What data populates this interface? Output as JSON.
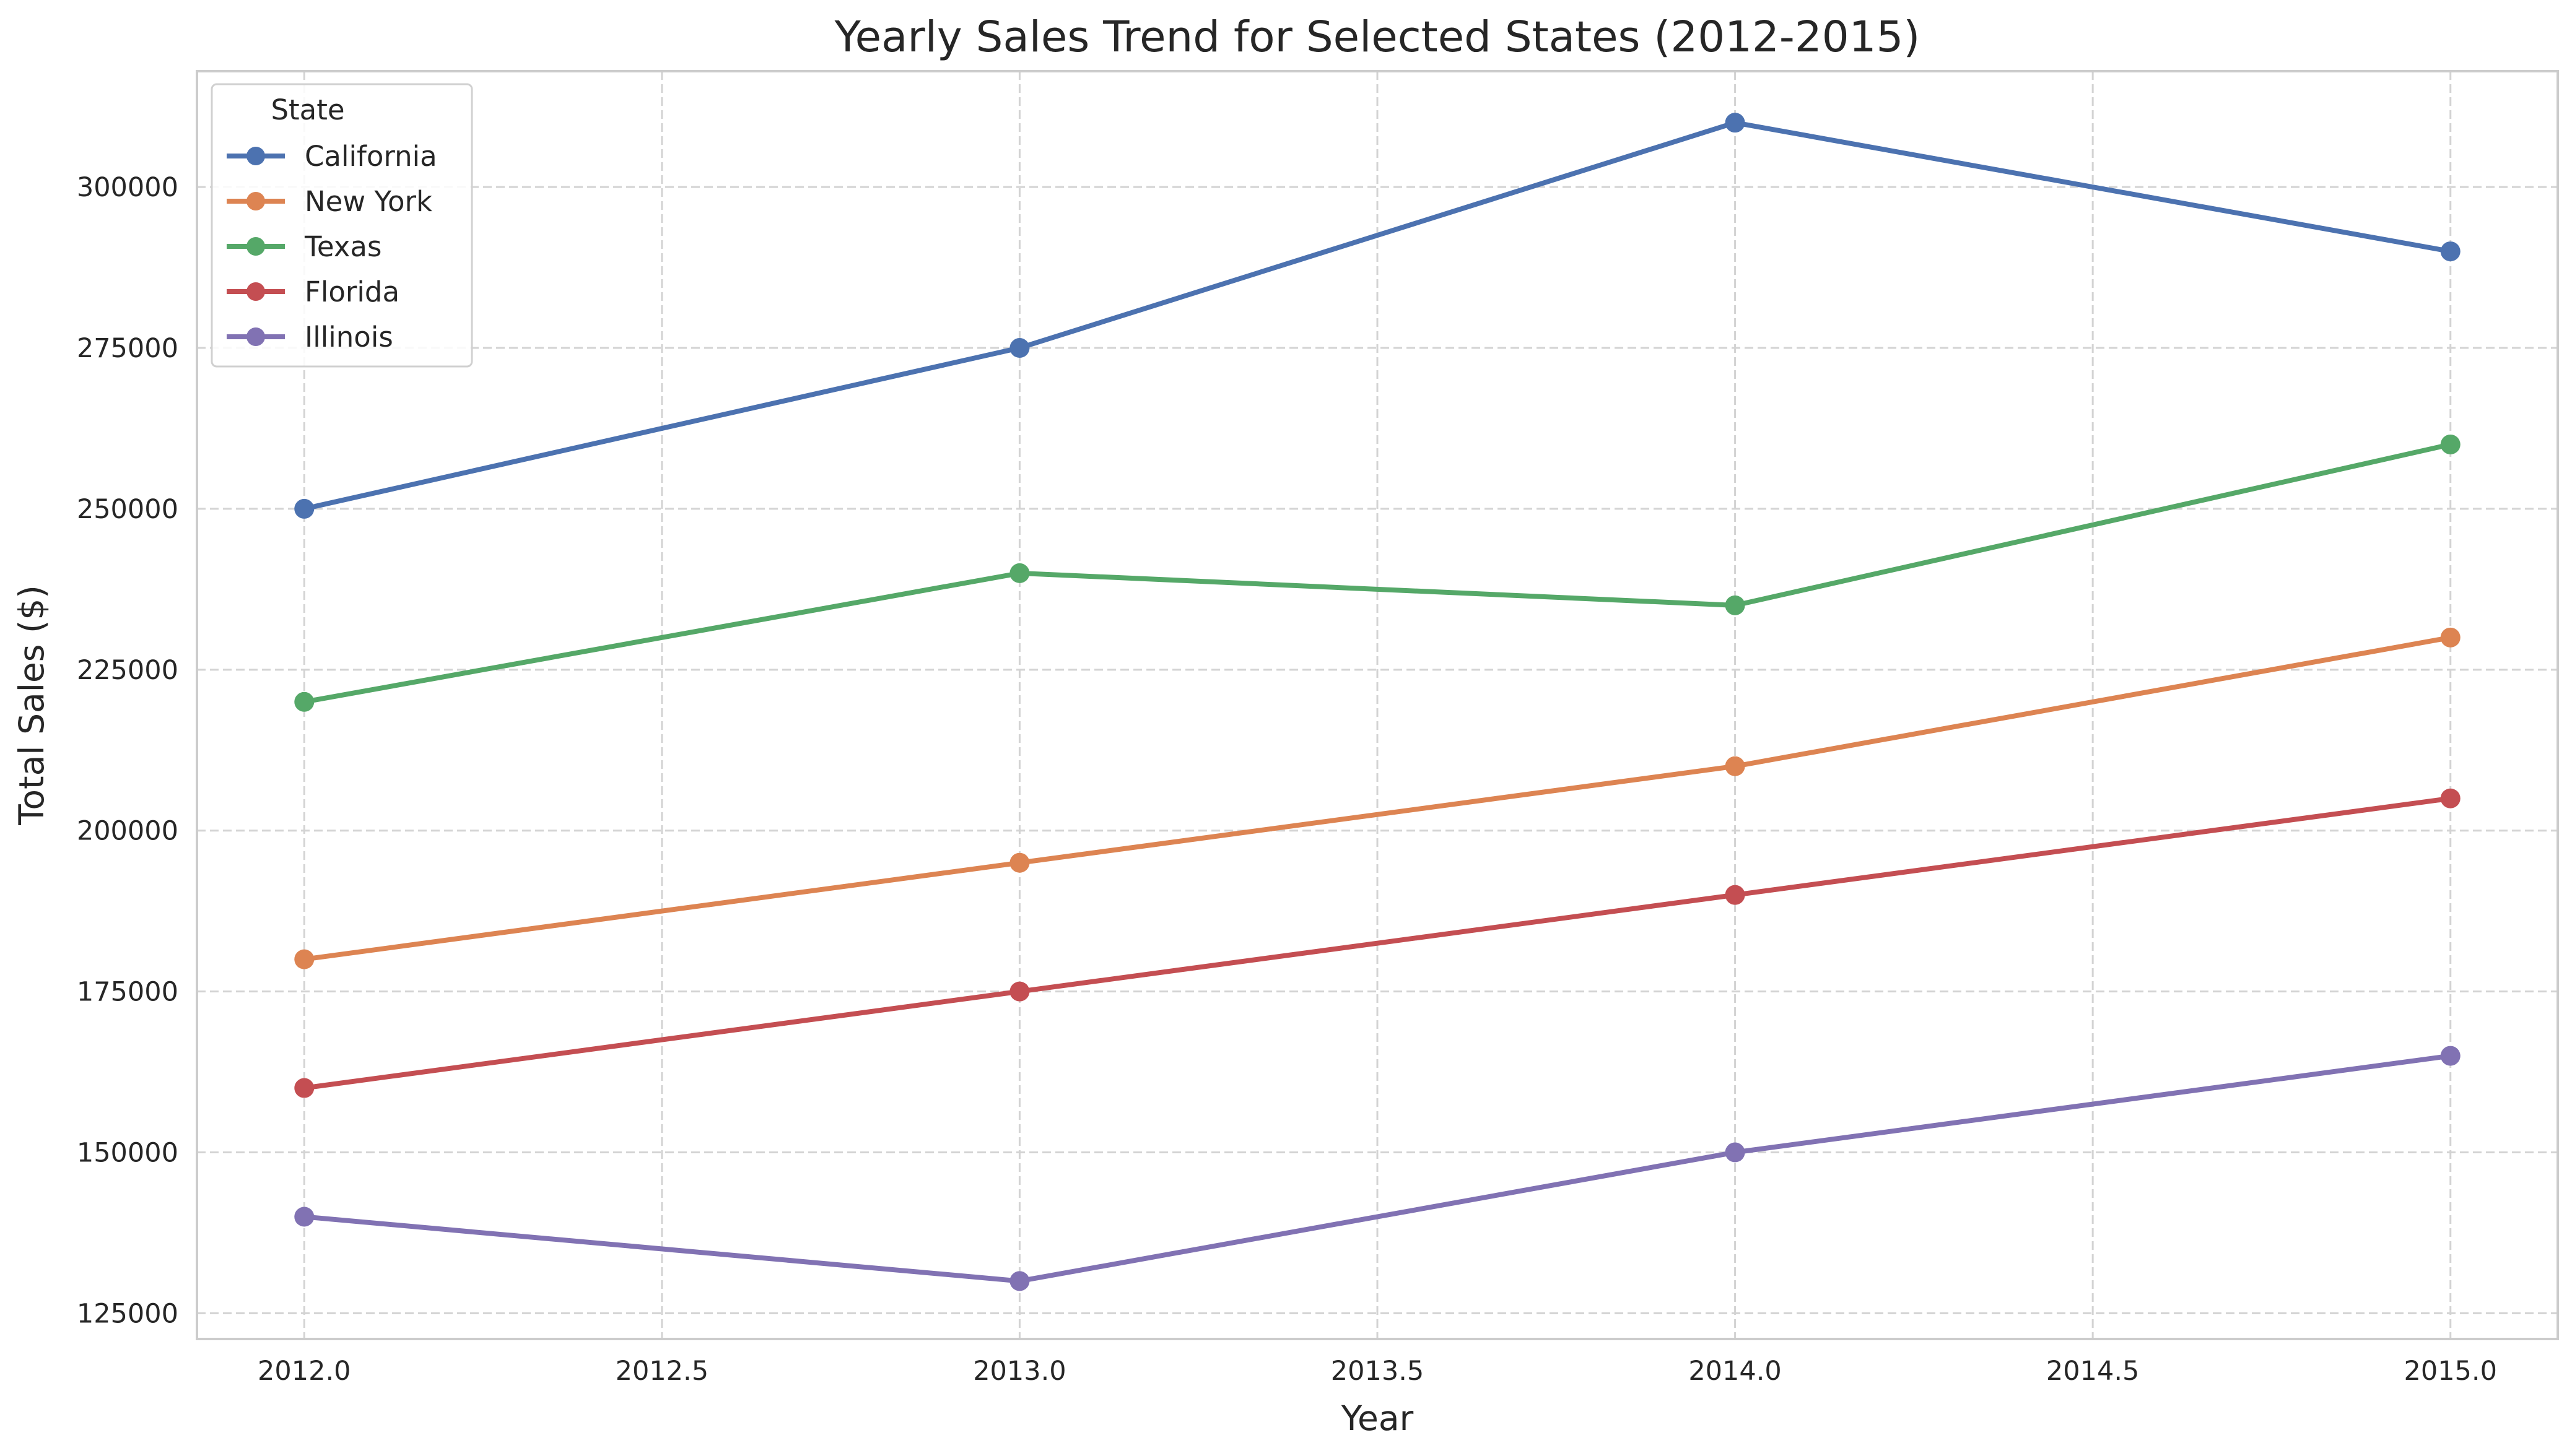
{
  "chart_data": {
    "type": "line",
    "title": "Yearly Sales Trend for Selected States (2012-2015)",
    "xlabel": "Year",
    "ylabel": "Total Sales ($)",
    "x": [
      2012,
      2013,
      2014,
      2015
    ],
    "xlim": [
      2011.85,
      2015.15
    ],
    "ylim": [
      121000,
      318000
    ],
    "xticks": [
      "2012.0",
      "2012.5",
      "2013.0",
      "2013.5",
      "2014.0",
      "2014.5",
      "2015.0"
    ],
    "xtick_values": [
      2012.0,
      2012.5,
      2013.0,
      2013.5,
      2014.0,
      2014.5,
      2015.0
    ],
    "yticks": [
      "125000",
      "150000",
      "175000",
      "200000",
      "225000",
      "250000",
      "275000",
      "300000"
    ],
    "ytick_values": [
      125000,
      150000,
      175000,
      200000,
      225000,
      250000,
      275000,
      300000
    ],
    "grid": true,
    "legend": {
      "title": "State",
      "placement": "top-left"
    },
    "series": [
      {
        "name": "California",
        "color": "#4c72b0",
        "values": [
          250000,
          275000,
          310000,
          290000
        ]
      },
      {
        "name": "New York",
        "color": "#dd8452",
        "values": [
          180000,
          195000,
          210000,
          230000
        ]
      },
      {
        "name": "Texas",
        "color": "#55a868",
        "values": [
          220000,
          240000,
          235000,
          260000
        ]
      },
      {
        "name": "Florida",
        "color": "#c44e52",
        "values": [
          160000,
          175000,
          190000,
          205000
        ]
      },
      {
        "name": "Illinois",
        "color": "#8172b3",
        "values": [
          140000,
          130000,
          150000,
          165000
        ]
      }
    ]
  }
}
